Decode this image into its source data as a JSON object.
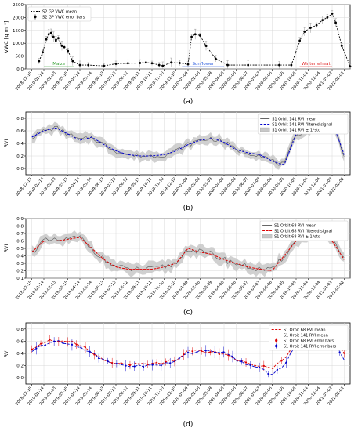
{
  "panels": [
    {
      "caption": "(a)"
    },
    {
      "caption": "(b)"
    },
    {
      "caption": "(c)"
    },
    {
      "caption": "(d)"
    }
  ],
  "x_tick_labels": [
    "2018-12-15",
    "2019-01-14",
    "2019-02-13",
    "2019-03-15",
    "2019-04-14",
    "2019-05-14",
    "2019-06-13",
    "2019-07-13",
    "2019-08-12",
    "2019-09-11",
    "2019-10-11",
    "2019-11-10",
    "2019-12-10",
    "2020-01-09",
    "2020-02-08",
    "2020-03-09",
    "2020-04-08",
    "2020-05-08",
    "2020-06-07",
    "2020-07-07",
    "2020-08-06",
    "2020-09-05",
    "2020-10-05",
    "2020-11-04",
    "2020-12-04",
    "2021-01-03",
    "2021-02-02"
  ],
  "colors": {
    "vwc": "#000000",
    "rvi141": "#0000cc",
    "rvi68": "#dd0000",
    "band": "#c8c8c8",
    "maize": "#2a9d2a",
    "sunflower": "#2255dd",
    "wheat": "#e02020"
  },
  "chart_data": [
    {
      "type": "line",
      "ylabel": "VWC [g m⁻²]",
      "ylim": [
        0,
        2500
      ],
      "yticks": [
        0,
        500,
        1000,
        1500,
        2000,
        2500
      ],
      "legend": [
        "S2 GP VWC mean",
        "S2 GP VWC error bars"
      ],
      "legend_position": "top-left",
      "annotations": [
        {
          "label": "Maize",
          "from": 1,
          "to": 3.5
        },
        {
          "label": "Sunflower",
          "from": 12.5,
          "to": 16
        },
        {
          "label": "Winter wheat",
          "from": 22.3,
          "to": 25
        }
      ],
      "series": [
        {
          "name": "S2 GP VWC mean",
          "x": [
            0.6,
            0.9,
            1.2,
            1.4,
            1.6,
            1.8,
            2.0,
            2.2,
            2.5,
            2.7,
            3.0,
            3.4,
            4.0,
            4.7,
            6.0,
            7.0,
            8.0,
            9.0,
            9.5,
            10.0,
            10.6,
            10.9,
            11.6,
            12.3,
            13.0,
            13.3,
            13.6,
            14.0,
            14.5,
            15.3,
            16.3,
            18.0,
            20.6,
            21.6,
            22.3,
            22.7,
            23.2,
            23.7,
            24.2,
            24.6,
            25.0,
            25.3,
            25.8,
            26.5
          ],
          "y": [
            300,
            650,
            1150,
            1350,
            1400,
            1250,
            1100,
            1200,
            900,
            850,
            700,
            300,
            150,
            150,
            120,
            200,
            220,
            230,
            250,
            220,
            150,
            120,
            250,
            230,
            180,
            1250,
            1350,
            1300,
            900,
            400,
            150,
            150,
            150,
            150,
            1100,
            1450,
            1600,
            1700,
            1900,
            2000,
            2150,
            1800,
            900,
            100
          ]
        }
      ]
    },
    {
      "type": "line",
      "ylabel": "RVI",
      "ylim": [
        -0.1,
        0.9
      ],
      "yticks": [
        0.0,
        0.2,
        0.4,
        0.6,
        0.8
      ],
      "legend": [
        "S1 Orbit 141 RVI mean",
        "S1 Orbit 141 RVI filtered signal",
        "S1 Orbit 141 RVI ± 1*std"
      ],
      "legend_position": "top-right",
      "series": [
        {
          "name": "S1 Orbit 141 RVI filtered signal",
          "x": [
            0,
            1,
            2,
            3,
            4,
            5,
            6,
            7,
            8,
            9,
            10,
            11,
            12,
            13,
            14,
            15,
            16,
            17,
            18,
            19,
            20,
            21,
            22,
            23,
            24,
            25,
            26
          ],
          "y": [
            0.5,
            0.6,
            0.65,
            0.55,
            0.45,
            0.5,
            0.38,
            0.28,
            0.22,
            0.2,
            0.2,
            0.22,
            0.28,
            0.38,
            0.45,
            0.48,
            0.42,
            0.3,
            0.25,
            0.22,
            0.12,
            0.05,
            0.55,
            0.6,
            0.8,
            0.75,
            0.22
          ]
        }
      ]
    },
    {
      "type": "line",
      "ylabel": "RVI",
      "ylim": [
        0.1,
        0.9
      ],
      "yticks": [
        0.1,
        0.2,
        0.3,
        0.4,
        0.5,
        0.6,
        0.7,
        0.8,
        0.9
      ],
      "legend": [
        "S1 Orbit 68 RVI mean",
        "S1 Orbit 68 RVI filtered signal",
        "S1 Orbit 68 RVI ± 1*std"
      ],
      "legend_position": "top-right",
      "series": [
        {
          "name": "S1 Orbit 68 RVI filtered signal",
          "x": [
            0,
            1,
            2,
            3,
            4,
            5,
            6,
            7,
            8,
            9,
            10,
            11,
            12,
            13,
            14,
            15,
            16,
            17,
            18,
            19,
            20,
            21,
            22,
            23,
            24,
            25,
            26
          ],
          "y": [
            0.45,
            0.6,
            0.6,
            0.62,
            0.65,
            0.5,
            0.35,
            0.25,
            0.22,
            0.22,
            0.22,
            0.25,
            0.3,
            0.5,
            0.45,
            0.42,
            0.35,
            0.3,
            0.25,
            0.22,
            0.2,
            0.4,
            0.6,
            0.7,
            0.72,
            0.6,
            0.35
          ]
        }
      ]
    },
    {
      "type": "line",
      "ylabel": "RVI",
      "ylim": [
        -0.1,
        0.9
      ],
      "yticks": [
        0.0,
        0.2,
        0.4,
        0.6,
        0.8
      ],
      "legend": [
        "S1 Orbit 68 RVI mean",
        "S1 Orbit 141 RVI mean",
        "S1 Orbit 68 RVI error bars",
        "S1 Orbit 141 RVI error bars"
      ],
      "legend_position": "top-right",
      "series": [
        {
          "name": "S1 Orbit 68 RVI mean",
          "x": [
            0,
            1,
            2,
            3,
            4,
            5,
            6,
            7,
            8,
            9,
            10,
            11,
            12,
            13,
            14,
            15,
            16,
            17,
            18,
            19,
            20,
            21,
            22,
            23,
            24,
            25,
            26
          ],
          "y": [
            0.48,
            0.6,
            0.62,
            0.6,
            0.55,
            0.42,
            0.3,
            0.25,
            0.22,
            0.22,
            0.22,
            0.25,
            0.3,
            0.45,
            0.45,
            0.42,
            0.4,
            0.3,
            0.25,
            0.2,
            0.15,
            0.3,
            0.6,
            0.68,
            0.72,
            0.65,
            0.4
          ]
        },
        {
          "name": "S1 Orbit 141 RVI mean",
          "x": [
            0,
            1,
            2,
            3,
            4,
            5,
            6,
            7,
            8,
            9,
            10,
            11,
            12,
            13,
            14,
            15,
            16,
            17,
            18,
            19,
            20,
            21,
            22,
            23,
            24,
            25,
            26
          ],
          "y": [
            0.42,
            0.55,
            0.6,
            0.55,
            0.5,
            0.42,
            0.28,
            0.22,
            0.2,
            0.2,
            0.2,
            0.22,
            0.28,
            0.4,
            0.45,
            0.45,
            0.4,
            0.3,
            0.22,
            0.15,
            0.05,
            0.2,
            0.55,
            0.62,
            0.78,
            0.68,
            0.3
          ]
        }
      ]
    }
  ]
}
